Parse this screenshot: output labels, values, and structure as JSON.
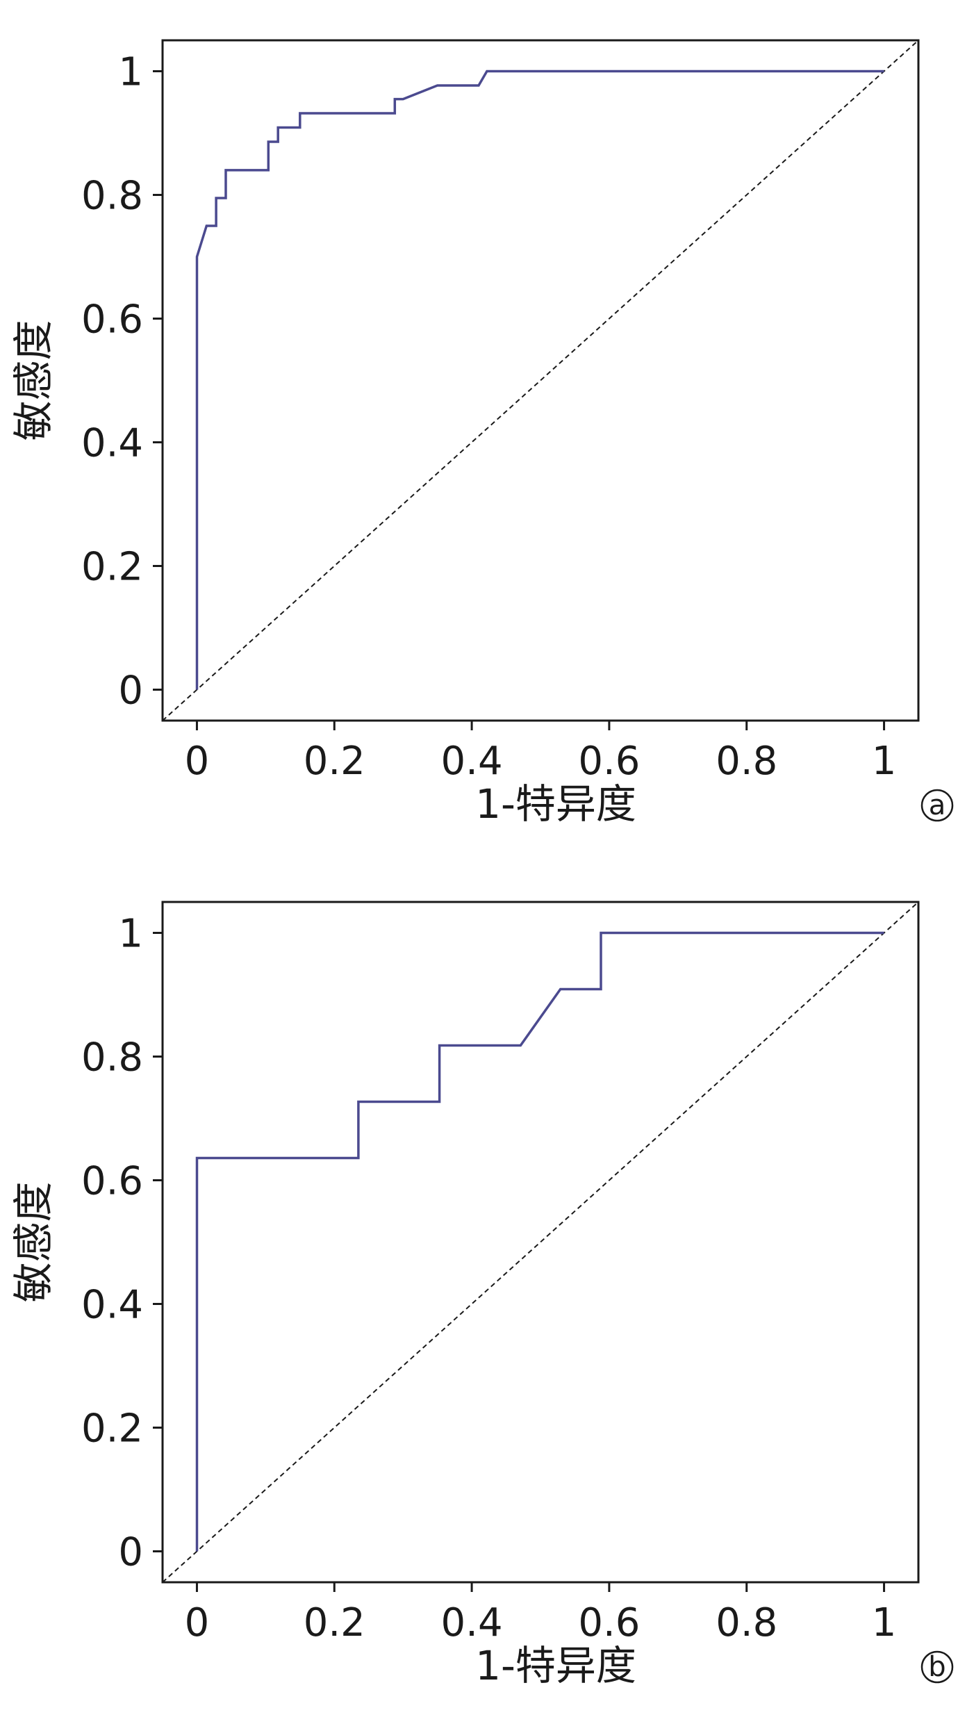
{
  "colors": {
    "roc_line": "#4b4a8f",
    "diagonal": "#1a1a1a",
    "axis": "#1a1a1a"
  },
  "chart_data": [
    {
      "type": "line",
      "panel_label": "a",
      "xlabel": "1-特异度",
      "ylabel": "敏感度",
      "xlim": [
        -0.05,
        1.05
      ],
      "ylim": [
        -0.05,
        1.05
      ],
      "x_ticks": [
        "0",
        "0.2",
        "0.4",
        "0.6",
        "0.8",
        "1"
      ],
      "y_ticks": [
        "0",
        "0.2",
        "0.4",
        "0.6",
        "0.8",
        "1"
      ],
      "grid": false,
      "series": [
        {
          "kind": "roc",
          "x": [
            0,
            0,
            0.014,
            0.028,
            0.028,
            0.042,
            0.042,
            0.104,
            0.104,
            0.118,
            0.118,
            0.15,
            0.15,
            0.288,
            0.288,
            0.3,
            0.35,
            0.41,
            0.422,
            1.0
          ],
          "y": [
            0,
            0.7,
            0.75,
            0.75,
            0.795,
            0.795,
            0.84,
            0.84,
            0.886,
            0.886,
            0.909,
            0.909,
            0.932,
            0.932,
            0.955,
            0.955,
            0.977,
            0.977,
            1.0,
            1.0
          ]
        },
        {
          "kind": "reference",
          "x": [
            -0.05,
            1.05
          ],
          "y": [
            -0.05,
            1.05
          ]
        }
      ]
    },
    {
      "type": "line",
      "panel_label": "b",
      "xlabel": "1-特异度",
      "ylabel": "敏感度",
      "xlim": [
        -0.05,
        1.05
      ],
      "ylim": [
        -0.05,
        1.05
      ],
      "x_ticks": [
        "0",
        "0.2",
        "0.4",
        "0.6",
        "0.8",
        "1"
      ],
      "y_ticks": [
        "0",
        "0.2",
        "0.4",
        "0.6",
        "0.8",
        "1"
      ],
      "grid": false,
      "series": [
        {
          "kind": "roc",
          "x": [
            0,
            0,
            0.235,
            0.235,
            0.353,
            0.353,
            0.471,
            0.529,
            0.588,
            0.588,
            1.0
          ],
          "y": [
            0,
            0.636,
            0.636,
            0.727,
            0.727,
            0.818,
            0.818,
            0.909,
            0.909,
            1.0,
            1.0
          ]
        },
        {
          "kind": "reference",
          "x": [
            -0.05,
            1.05
          ],
          "y": [
            -0.05,
            1.05
          ]
        }
      ]
    }
  ]
}
